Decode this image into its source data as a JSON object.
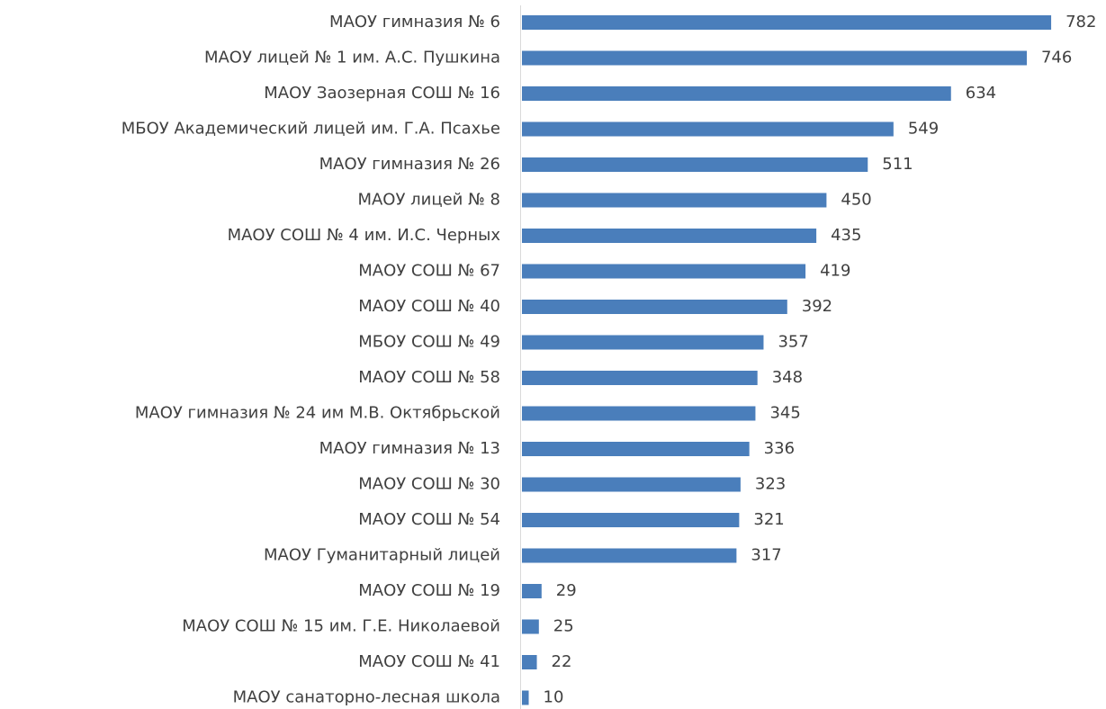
{
  "chart_data": {
    "type": "barh",
    "categories": [
      "МАОУ гимназия № 6",
      "МАОУ лицей № 1 им. А.С. Пушкина",
      "МАОУ Заозерная СОШ № 16",
      "МБОУ Академический лицей им. Г.А. Псахье",
      "МАОУ гимназия № 26",
      "МАОУ лицей № 8",
      "МАОУ СОШ № 4 им. И.С. Черных",
      "МАОУ СОШ № 67",
      "МАОУ СОШ № 40",
      "МБОУ СОШ № 49",
      "МАОУ СОШ № 58",
      "МАОУ гимназия № 24 им М.В. Октябрьской",
      "МАОУ гимназия № 13",
      "МАОУ СОШ № 30",
      "МАОУ СОШ № 54",
      "МАОУ Гуманитарный лицей",
      "МАОУ СОШ № 19",
      "МАОУ СОШ № 15 им. Г.Е. Николаевой",
      "МАОУ СОШ № 41",
      "МАОУ санаторно-лесная школа"
    ],
    "values": [
      782,
      746,
      634,
      549,
      511,
      450,
      435,
      419,
      392,
      357,
      348,
      345,
      336,
      323,
      321,
      317,
      29,
      25,
      22,
      10
    ],
    "color": "#4a7ebb"
  }
}
